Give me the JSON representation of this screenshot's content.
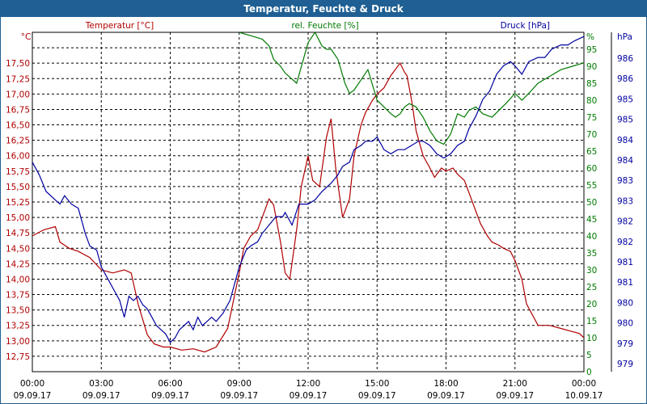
{
  "window": {
    "title": "Temperatur, Feuchte & Druck"
  },
  "chart_data": {
    "type": "line",
    "title": "Temperatur, Feuchte & Druck",
    "grid": true,
    "colors": {
      "temperature": "#b00000",
      "humidity": "#007a00",
      "pressure": "#0000a0",
      "title_bar": "#1f5f93"
    },
    "axes": {
      "temperature": {
        "label": "Temperatur [°C]",
        "unit": "°C",
        "range": [
          12.5,
          18.0
        ],
        "ticks": [
          "12,75",
          "13,00",
          "13,25",
          "13,50",
          "13,75",
          "14,00",
          "14,25",
          "14,50",
          "14,75",
          "15,00",
          "15,25",
          "15,50",
          "15,75",
          "16,00",
          "16,25",
          "16,50",
          "16,75",
          "17,00",
          "17,25",
          "17,50"
        ]
      },
      "humidity": {
        "label": "rel. Feuchte [%]",
        "unit": "%",
        "range": [
          0,
          100
        ],
        "ticks": [
          "0",
          "5",
          "10",
          "15",
          "20",
          "25",
          "30",
          "35",
          "40",
          "45",
          "50",
          "55",
          "60",
          "65",
          "70",
          "75",
          "80",
          "85",
          "90",
          "95"
        ]
      },
      "pressure": {
        "label": "Druck [hPa]",
        "unit": "hPa",
        "range": [
          978.5,
          986.6
        ],
        "ticks": [
          "979",
          "979",
          "980",
          "980",
          "981",
          "981",
          "982",
          "982",
          "983",
          "983",
          "984",
          "984",
          "985",
          "985",
          "986",
          "986"
        ]
      },
      "x": {
        "range": [
          0,
          24
        ],
        "ticks": [
          {
            "time": "00:00",
            "date": "09.09.17"
          },
          {
            "time": "03:00",
            "date": "09.09.17"
          },
          {
            "time": "06:00",
            "date": "09.09.17"
          },
          {
            "time": "09:00",
            "date": "09.09.17"
          },
          {
            "time": "12:00",
            "date": "09.09.17"
          },
          {
            "time": "15:00",
            "date": "09.09.17"
          },
          {
            "time": "18:00",
            "date": "09.09.17"
          },
          {
            "time": "21:00",
            "date": "09.09.17"
          },
          {
            "time": "00:00",
            "date": "10.09.17"
          }
        ]
      }
    },
    "series": [
      {
        "name": "Temperatur [°C]",
        "axis": "temperature",
        "x": [
          0,
          0.5,
          1,
          1.2,
          1.6,
          2,
          2.5,
          3,
          3.5,
          4,
          4.3,
          4.6,
          5,
          5.3,
          5.7,
          6,
          6.5,
          7,
          7.5,
          8,
          8.5,
          9,
          9.2,
          9.5,
          9.8,
          10,
          10.3,
          10.5,
          10.8,
          11,
          11.2,
          11.5,
          11.7,
          12,
          12.2,
          12.5,
          12.8,
          13,
          13.2,
          13.5,
          13.8,
          14,
          14.3,
          14.5,
          14.8,
          15,
          15.3,
          15.6,
          15.8,
          16,
          16.2,
          16.3,
          16.5,
          16.7,
          17,
          17.3,
          17.5,
          17.8,
          18,
          18.3,
          18.5,
          18.8,
          19,
          19.3,
          19.5,
          19.8,
          20,
          20.3,
          20.5,
          20.8,
          21,
          21.3,
          21.5,
          22,
          22.5,
          23,
          23.5,
          23.8,
          24
        ],
        "values": [
          14.7,
          14.8,
          14.85,
          14.6,
          14.5,
          14.45,
          14.35,
          14.15,
          14.1,
          14.15,
          14.1,
          13.6,
          13.1,
          12.95,
          12.9,
          12.9,
          12.85,
          12.87,
          12.82,
          12.9,
          13.2,
          14.1,
          14.5,
          14.7,
          14.8,
          15.0,
          15.3,
          15.2,
          14.6,
          14.1,
          14.0,
          14.8,
          15.5,
          16.0,
          15.6,
          15.5,
          16.3,
          16.6,
          15.8,
          15.0,
          15.3,
          16.0,
          16.5,
          16.7,
          16.9,
          17.0,
          17.1,
          17.3,
          17.4,
          17.5,
          17.35,
          17.3,
          16.9,
          16.4,
          16.0,
          15.8,
          15.65,
          15.8,
          15.75,
          15.8,
          15.7,
          15.6,
          15.4,
          15.1,
          14.9,
          14.7,
          14.6,
          14.55,
          14.5,
          14.45,
          14.3,
          14.0,
          13.6,
          13.25,
          13.25,
          13.2,
          13.15,
          13.12,
          13.05
        ]
      },
      {
        "name": "rel. Feuchte [%]",
        "axis": "humidity",
        "x": [
          9,
          9.5,
          10,
          10.3,
          10.5,
          10.8,
          11,
          11.5,
          12,
          12.3,
          12.6,
          12.8,
          13,
          13.3,
          13.6,
          13.8,
          14,
          14.3,
          14.6,
          15,
          15.3,
          15.6,
          15.8,
          16,
          16.2,
          16.4,
          16.7,
          17,
          17.3,
          17.6,
          17.9,
          18.2,
          18.5,
          18.8,
          19,
          19.3,
          19.6,
          20,
          20.3,
          20.6,
          21,
          21.3,
          21.6,
          22,
          22.5,
          23,
          23.5,
          24
        ],
        "values": [
          100,
          99,
          98,
          96,
          92,
          90,
          88,
          85,
          97,
          100,
          96,
          95,
          95,
          92,
          85,
          82,
          83,
          86,
          89,
          80,
          78,
          76,
          75,
          76,
          78,
          79,
          78,
          75,
          71,
          68,
          67,
          70,
          76,
          75,
          77,
          78,
          76,
          75,
          77,
          79,
          82,
          80,
          82,
          85,
          87,
          89,
          90,
          91
        ]
      },
      {
        "name": "Druck [hPa]",
        "axis": "pressure",
        "x": [
          0,
          0.3,
          0.6,
          1,
          1.2,
          1.4,
          1.7,
          2,
          2.3,
          2.5,
          2.8,
          3,
          3.2,
          3.4,
          3.6,
          3.8,
          4,
          4.2,
          4.4,
          4.6,
          4.8,
          5,
          5.2,
          5.4,
          5.6,
          5.8,
          6,
          6.2,
          6.4,
          6.6,
          6.8,
          7,
          7.2,
          7.4,
          7.6,
          7.8,
          8,
          8.3,
          8.6,
          8.8,
          9,
          9.3,
          9.5,
          9.8,
          10,
          10.3,
          10.6,
          10.9,
          11,
          11.3,
          11.6,
          12,
          12.3,
          12.6,
          13,
          13.3,
          13.5,
          13.8,
          14,
          14.3,
          14.5,
          14.8,
          15,
          15.3,
          15.6,
          15.9,
          16.2,
          16.5,
          16.8,
          17,
          17.3,
          17.6,
          17.9,
          18.2,
          18.5,
          18.8,
          19,
          19.3,
          19.6,
          19.9,
          20.2,
          20.5,
          20.8,
          21,
          21.3,
          21.6,
          22,
          22.3,
          22.6,
          23,
          23.3,
          23.6,
          24
        ],
        "values": [
          983.5,
          983.2,
          982.8,
          982.6,
          982.5,
          982.7,
          982.5,
          982.4,
          981.8,
          981.5,
          981.4,
          981.0,
          980.8,
          980.6,
          980.4,
          980.2,
          979.8,
          980.3,
          980.2,
          980.3,
          980.1,
          980.0,
          979.8,
          979.6,
          979.5,
          979.4,
          979.2,
          979.3,
          979.5,
          979.6,
          979.7,
          979.5,
          979.8,
          979.6,
          979.7,
          979.8,
          979.7,
          979.9,
          980.2,
          980.6,
          981.0,
          981.4,
          981.5,
          981.6,
          981.8,
          982.0,
          982.2,
          982.2,
          982.3,
          982.0,
          982.5,
          982.5,
          982.6,
          982.8,
          983.0,
          983.2,
          983.4,
          983.5,
          983.8,
          983.9,
          984.0,
          984.0,
          984.1,
          983.8,
          983.7,
          983.8,
          983.8,
          983.9,
          984.0,
          984.0,
          983.9,
          983.7,
          983.6,
          983.7,
          983.9,
          984.0,
          984.3,
          984.6,
          985.0,
          985.2,
          985.6,
          985.8,
          985.9,
          985.8,
          985.6,
          985.9,
          986.0,
          986.0,
          986.2,
          986.3,
          986.3,
          986.4,
          986.5
        ]
      }
    ]
  }
}
